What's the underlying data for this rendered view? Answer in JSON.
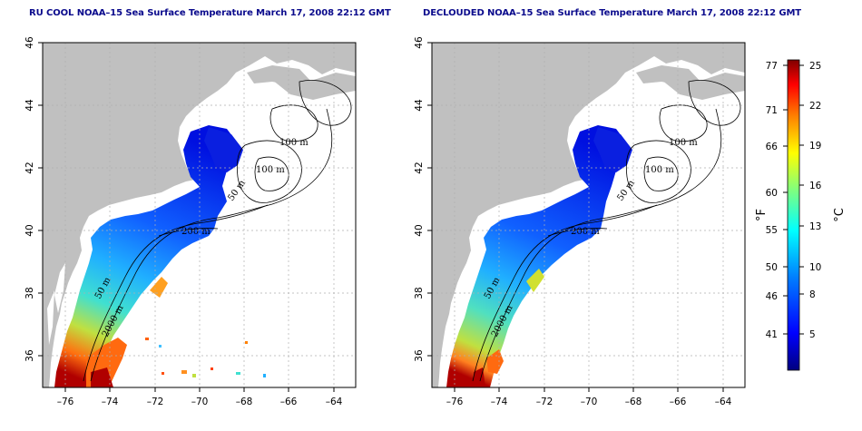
{
  "titles": {
    "left": "RU COOL NOAA–15 Sea Surface Temperature March 17, 2008 22:12 GMT",
    "right": "DECLOUDED NOAA–15 Sea Surface Temperature March 17, 2008 22:12 GMT"
  },
  "axes": {
    "x_ticks": [
      "–76",
      "–74",
      "–72",
      "–70",
      "–68",
      "–66",
      "–64"
    ],
    "y_ticks": [
      "36",
      "38",
      "40",
      "42",
      "44",
      "46"
    ],
    "lon_range": [
      -77,
      -63
    ],
    "lat_range": [
      35,
      46
    ]
  },
  "contour_labels": {
    "left": [
      "100 m",
      "100 m",
      "50 m",
      "200 m",
      "50 m",
      "2000 m"
    ],
    "right": [
      "100 m",
      "100 m",
      "50 m",
      "200 m",
      "50 m",
      "2000 m"
    ]
  },
  "colorbar": {
    "fahrenheit_ticks": [
      "77",
      "71",
      "66",
      "60",
      "55",
      "50",
      "46",
      "41"
    ],
    "celsius_ticks": [
      "25",
      "22",
      "19",
      "16",
      "13",
      "10",
      "8",
      "5"
    ],
    "fahrenheit_unit": "°F",
    "celsius_unit": "°C",
    "colors": [
      "#00007f",
      "#0000ff",
      "#007fff",
      "#00ffff",
      "#7fff7f",
      "#ffff00",
      "#ff7f00",
      "#ff0000",
      "#7f0000"
    ]
  },
  "colors": {
    "land": "#c0c0c0",
    "grid": "#b0b0b0",
    "title": "#0a0a8c"
  }
}
